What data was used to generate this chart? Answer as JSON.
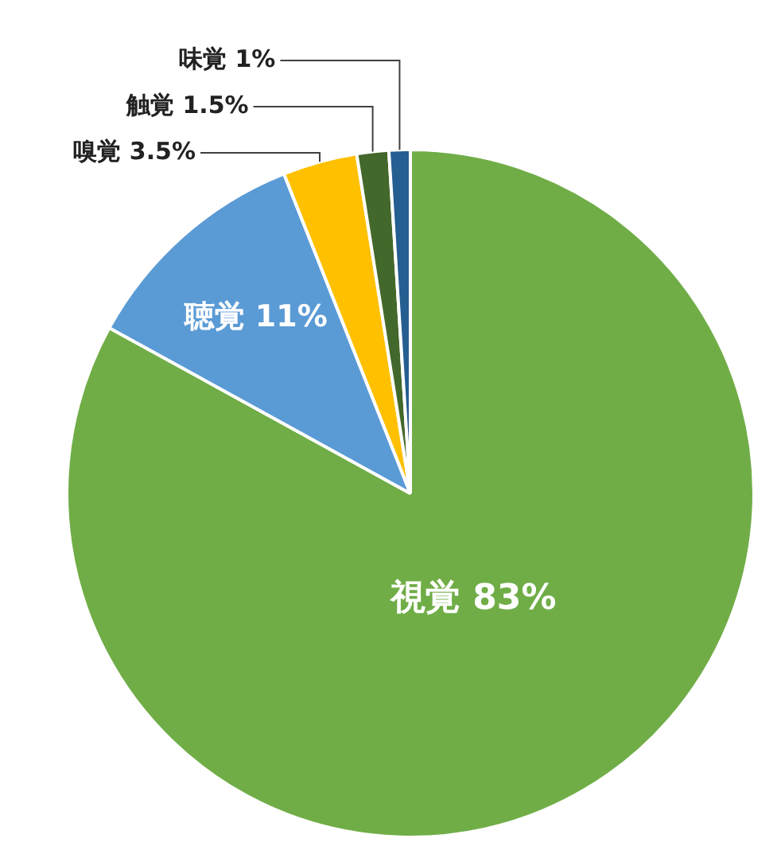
{
  "chart_data": {
    "type": "pie",
    "categories": [
      "視覚",
      "聴覚",
      "嗅覚",
      "触覚",
      "味覚"
    ],
    "values": [
      83,
      11,
      3.5,
      1.5,
      1
    ],
    "value_labels": [
      "83%",
      "11%",
      "3.5%",
      "1.5%",
      "1%"
    ],
    "colors": [
      "#70ad47",
      "#5b9bd5",
      "#ffc000",
      "#43682b",
      "#255e91"
    ],
    "legend": false
  }
}
